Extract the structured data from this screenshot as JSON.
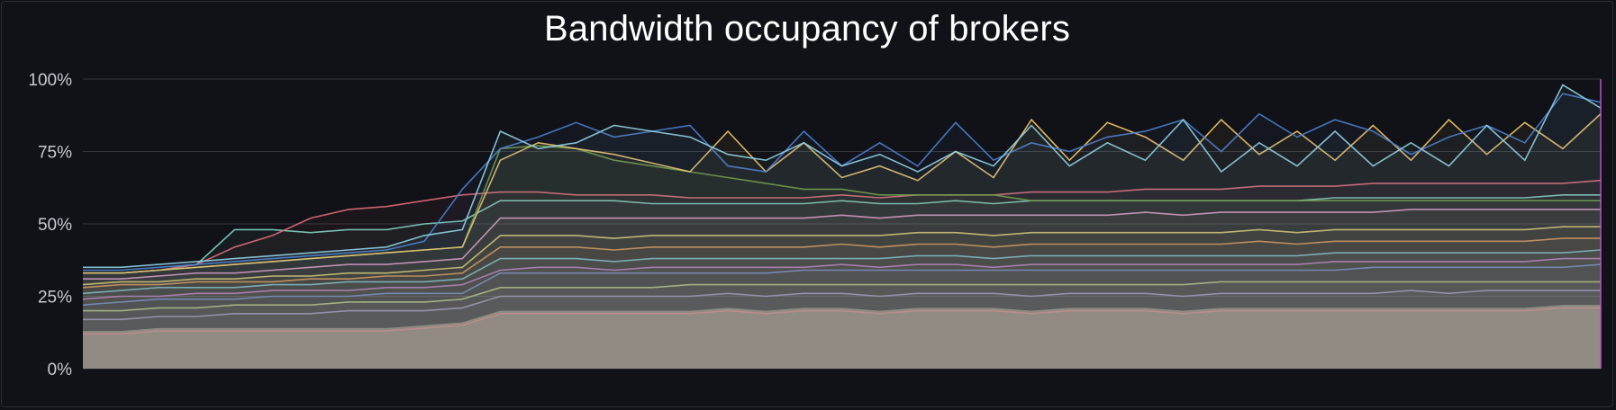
{
  "panel": {
    "title": "Bandwidth occupancy of brokers"
  },
  "colors": {
    "background": "#111217",
    "grid": "#34363d",
    "tick_text": "#c7c9d1",
    "fill": "#8e8375"
  },
  "chart_data": {
    "type": "line",
    "title": "Bandwidth occupancy of brokers",
    "xlabel": "",
    "ylabel": "",
    "ylim": [
      0,
      100
    ],
    "y_ticks": [
      "0%",
      "25%",
      "50%",
      "75%",
      "100%"
    ],
    "y_tick_values": [
      0,
      25,
      50,
      75,
      100
    ],
    "grid": true,
    "legend": "none",
    "stacked_fill": true,
    "x": [
      0,
      1,
      2,
      3,
      4,
      5,
      6,
      7,
      8,
      9,
      10,
      11,
      12,
      13,
      14,
      15,
      16,
      17,
      18,
      19,
      20,
      21,
      22,
      23,
      24,
      25,
      26,
      27,
      28,
      29,
      30,
      31,
      32,
      33,
      34,
      35,
      36,
      37,
      38,
      39,
      40
    ],
    "series": [
      {
        "color": "#e07b7b",
        "values": [
          12,
          12,
          13,
          13,
          13,
          13,
          13,
          13,
          13,
          14,
          15,
          19,
          19,
          19,
          19,
          19,
          19,
          20,
          19,
          20,
          20,
          19,
          20,
          20,
          20,
          19,
          20,
          20,
          20,
          19,
          20,
          20,
          20,
          20,
          20,
          20,
          20,
          20,
          20,
          21,
          21
        ]
      },
      {
        "color": "#9b8fce",
        "values": [
          17,
          17,
          18,
          18,
          19,
          19,
          19,
          20,
          20,
          20,
          21,
          25,
          25,
          25,
          25,
          25,
          25,
          26,
          25,
          26,
          26,
          25,
          26,
          26,
          26,
          25,
          26,
          26,
          26,
          25,
          26,
          26,
          26,
          26,
          26,
          27,
          26,
          27,
          27,
          27,
          27
        ]
      },
      {
        "color": "#b9d37a",
        "values": [
          20,
          20,
          21,
          21,
          22,
          22,
          22,
          23,
          23,
          23,
          24,
          28,
          28,
          28,
          28,
          28,
          29,
          29,
          29,
          29,
          29,
          29,
          29,
          29,
          29,
          29,
          29,
          29,
          29,
          29,
          30,
          30,
          30,
          30,
          30,
          30,
          30,
          30,
          30,
          30,
          30
        ]
      },
      {
        "color": "#5a7fd6",
        "values": [
          22,
          23,
          24,
          24,
          24,
          25,
          25,
          25,
          26,
          26,
          26,
          33,
          33,
          33,
          33,
          33,
          33,
          33,
          33,
          34,
          34,
          34,
          34,
          34,
          34,
          34,
          34,
          34,
          34,
          34,
          34,
          34,
          34,
          34,
          35,
          35,
          35,
          35,
          35,
          35,
          36
        ]
      },
      {
        "color": "#b96fd1",
        "values": [
          24,
          25,
          25,
          26,
          26,
          27,
          27,
          27,
          28,
          28,
          29,
          34,
          35,
          35,
          34,
          35,
          35,
          35,
          35,
          35,
          36,
          35,
          36,
          36,
          35,
          36,
          36,
          36,
          36,
          36,
          36,
          36,
          36,
          37,
          37,
          37,
          37,
          37,
          37,
          38,
          38
        ]
      },
      {
        "color": "#6cc2e0",
        "values": [
          26,
          27,
          28,
          28,
          28,
          29,
          29,
          30,
          30,
          30,
          31,
          38,
          38,
          38,
          37,
          38,
          38,
          38,
          38,
          38,
          38,
          38,
          39,
          39,
          38,
          39,
          39,
          39,
          39,
          39,
          39,
          39,
          39,
          40,
          40,
          40,
          40,
          40,
          40,
          40,
          41
        ]
      },
      {
        "color": "#e0944a",
        "values": [
          28,
          29,
          29,
          30,
          30,
          30,
          31,
          31,
          32,
          32,
          33,
          42,
          42,
          42,
          41,
          42,
          42,
          42,
          42,
          42,
          43,
          42,
          43,
          43,
          42,
          43,
          43,
          43,
          43,
          43,
          43,
          44,
          43,
          44,
          44,
          44,
          44,
          44,
          44,
          45,
          45
        ]
      },
      {
        "color": "#e6d36a",
        "values": [
          29,
          30,
          30,
          31,
          31,
          32,
          32,
          33,
          33,
          34,
          35,
          46,
          46,
          46,
          45,
          46,
          46,
          46,
          46,
          46,
          46,
          46,
          47,
          47,
          46,
          47,
          47,
          47,
          47,
          47,
          47,
          48,
          47,
          48,
          48,
          48,
          48,
          48,
          48,
          49,
          49
        ]
      },
      {
        "color": "#e89ad0",
        "values": [
          31,
          31,
          32,
          33,
          33,
          34,
          35,
          36,
          36,
          37,
          38,
          52,
          52,
          52,
          52,
          52,
          52,
          52,
          52,
          52,
          53,
          52,
          53,
          53,
          53,
          53,
          53,
          53,
          54,
          53,
          54,
          54,
          54,
          54,
          54,
          55,
          55,
          55,
          55,
          55,
          55
        ]
      },
      {
        "color": "#7fd6c6",
        "values": [
          33,
          33,
          34,
          36,
          48,
          48,
          47,
          48,
          48,
          50,
          51,
          58,
          58,
          58,
          58,
          57,
          57,
          57,
          57,
          57,
          58,
          57,
          57,
          58,
          57,
          58,
          58,
          58,
          58,
          58,
          58,
          58,
          58,
          59,
          59,
          59,
          59,
          59,
          59,
          60,
          60
        ]
      },
      {
        "color": "#e06b78",
        "values": [
          33,
          33,
          34,
          36,
          42,
          46,
          52,
          55,
          56,
          58,
          60,
          61,
          61,
          60,
          60,
          60,
          59,
          59,
          59,
          59,
          60,
          59,
          60,
          60,
          60,
          61,
          61,
          61,
          62,
          62,
          62,
          63,
          63,
          63,
          64,
          64,
          64,
          64,
          64,
          64,
          65
        ]
      },
      {
        "color": "#6f9a3e",
        "values": [
          33,
          33,
          34,
          35,
          36,
          37,
          38,
          39,
          40,
          41,
          42,
          76,
          77,
          76,
          72,
          70,
          68,
          66,
          64,
          62,
          62,
          60,
          60,
          60,
          60,
          58,
          58,
          58,
          58,
          58,
          58,
          58,
          58,
          58,
          58,
          58,
          58,
          58,
          58,
          58,
          58
        ]
      },
      {
        "color": "#f2c76b",
        "values": [
          33,
          33,
          34,
          35,
          36,
          37,
          38,
          39,
          40,
          41,
          42,
          72,
          78,
          76,
          74,
          71,
          68,
          82,
          68,
          78,
          66,
          70,
          65,
          75,
          66,
          86,
          72,
          85,
          80,
          72,
          86,
          74,
          82,
          72,
          84,
          72,
          86,
          74,
          85,
          76,
          88
        ]
      },
      {
        "color": "#4b7fcf",
        "values": [
          34,
          34,
          35,
          36,
          37,
          38,
          39,
          40,
          41,
          44,
          62,
          76,
          80,
          85,
          80,
          82,
          84,
          70,
          68,
          82,
          70,
          78,
          70,
          85,
          72,
          78,
          75,
          80,
          82,
          86,
          75,
          88,
          80,
          86,
          82,
          74,
          80,
          84,
          78,
          95,
          92
        ]
      },
      {
        "color": "#8fcfe3",
        "values": [
          35,
          35,
          36,
          37,
          38,
          39,
          40,
          41,
          42,
          46,
          48,
          82,
          76,
          78,
          84,
          82,
          80,
          74,
          72,
          78,
          70,
          74,
          68,
          75,
          70,
          84,
          70,
          78,
          72,
          86,
          68,
          78,
          70,
          82,
          70,
          78,
          70,
          84,
          72,
          98,
          90
        ]
      }
    ]
  }
}
